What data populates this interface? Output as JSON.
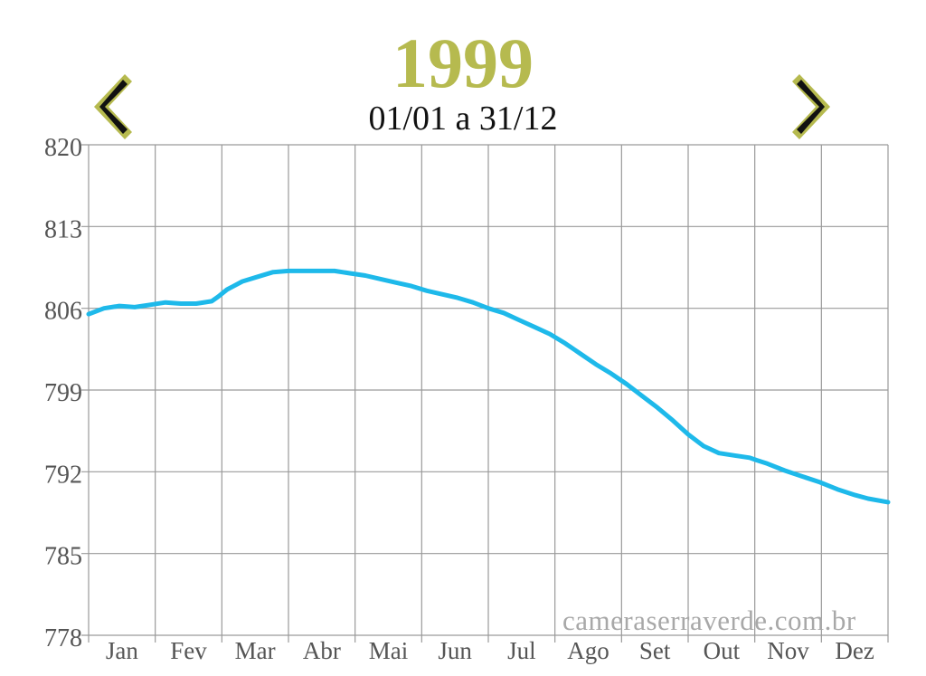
{
  "header": {
    "year": "1999",
    "date_range": "01/01 a 31/12",
    "accent_color": "#b6ba4f",
    "prev_icon": "chevron-left-icon",
    "next_icon": "chevron-right-icon"
  },
  "watermark": "cameraserraverde.com.br",
  "chart_data": {
    "type": "line",
    "title": "",
    "xlabel": "",
    "ylabel": "",
    "categories": [
      "Jan",
      "Fev",
      "Mar",
      "Abr",
      "Mai",
      "Jun",
      "Jul",
      "Ago",
      "Set",
      "Out",
      "Nov",
      "Dez"
    ],
    "yticks": [
      820,
      813,
      806,
      799,
      792,
      785,
      778
    ],
    "ylim": [
      778,
      820
    ],
    "xlim": [
      1,
      365
    ],
    "grid": true,
    "line_color": "#1eb9ea",
    "series": [
      {
        "x": [
          1,
          8,
          15,
          22,
          29,
          36,
          43,
          50,
          57,
          60,
          64,
          71,
          78,
          85,
          92,
          99,
          106,
          113,
          120,
          127,
          134,
          141,
          148,
          155,
          162,
          169,
          176,
          183,
          190,
          197,
          204,
          211,
          218,
          225,
          232,
          239,
          246,
          253,
          260,
          267,
          274,
          281,
          288,
          295,
          302,
          305,
          310,
          318,
          326,
          334,
          342,
          350,
          356,
          365
        ],
        "values": [
          805.5,
          806.0,
          806.2,
          806.1,
          806.3,
          806.5,
          806.4,
          806.4,
          806.6,
          807.0,
          807.6,
          808.3,
          808.7,
          809.1,
          809.2,
          809.2,
          809.2,
          809.2,
          809.0,
          808.8,
          808.5,
          808.2,
          807.9,
          807.5,
          807.2,
          806.9,
          806.5,
          806.0,
          805.6,
          805.0,
          804.4,
          803.8,
          803.0,
          802.1,
          801.2,
          800.4,
          799.5,
          798.5,
          797.5,
          796.4,
          795.2,
          794.2,
          793.6,
          793.4,
          793.2,
          793.0,
          792.7,
          792.1,
          791.6,
          791.1,
          790.5,
          790.0,
          789.7,
          789.4
        ]
      }
    ]
  }
}
